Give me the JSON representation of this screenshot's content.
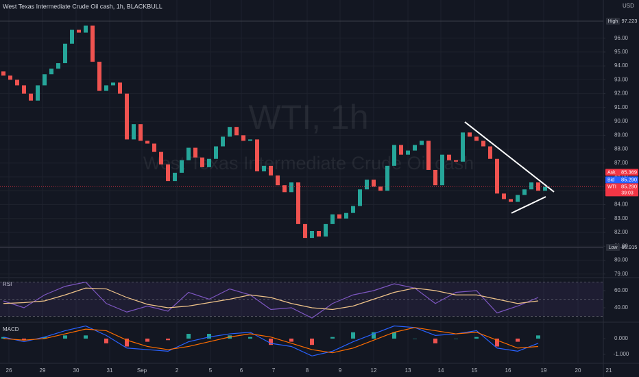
{
  "header": {
    "title": "West Texas Intermediate Crude Oil cash, 1h, BLACKBULL",
    "currency": "USD",
    "watermark": "WTI, 1h",
    "watermark_sub": "West Texas Intermediate Crude Oil cash"
  },
  "chart_data": [
    {
      "type": "candlestick",
      "open": [
        93.6,
        93.3,
        93.0,
        92.6,
        92.0,
        91.5,
        92.6,
        93.4,
        93.8,
        94.2,
        95.6,
        96.6,
        96.4,
        96.9,
        94.3,
        92.2,
        92.6,
        92.8,
        92.0,
        88.7,
        89.8,
        88.6,
        88.4,
        87.8,
        86.9,
        85.7,
        86.3,
        87.2,
        88.1,
        87.4,
        86.7,
        87.3,
        88.2,
        88.9,
        89.6,
        89.0,
        88.6,
        88.7,
        86.4,
        86.8,
        86.1,
        85.4,
        84.9,
        85.6,
        82.6,
        81.6,
        82.1,
        81.7,
        82.6,
        83.3,
        83.0,
        83.4,
        83.9,
        85.1,
        85.8,
        85.3,
        85.0,
        86.8,
        88.3,
        87.6,
        87.9,
        88.3,
        88.6,
        86.5,
        85.4,
        87.6,
        87.2,
        87.1,
        89.2,
        88.9,
        88.6,
        88.2,
        87.3,
        84.8,
        84.4,
        84.2,
        84.7,
        85.1,
        85.6,
        85.0
      ],
      "high": {
        "label": "High",
        "value": 97.223
      },
      "low": {
        "label": "Low",
        "value": 80.915
      },
      "close": [
        93.3,
        93.0,
        92.6,
        92.0,
        91.5,
        92.6,
        93.4,
        93.8,
        94.2,
        95.6,
        96.6,
        96.4,
        96.9,
        94.3,
        92.2,
        92.6,
        92.8,
        92.0,
        88.7,
        89.8,
        88.6,
        88.4,
        87.8,
        86.9,
        85.7,
        86.3,
        87.2,
        88.1,
        87.4,
        86.7,
        87.3,
        88.2,
        88.9,
        89.6,
        89.0,
        88.6,
        88.7,
        86.4,
        86.8,
        86.1,
        85.4,
        84.9,
        85.6,
        82.6,
        81.6,
        82.1,
        81.7,
        82.6,
        83.3,
        83.0,
        83.4,
        83.9,
        85.1,
        85.8,
        85.3,
        85.0,
        86.8,
        88.3,
        87.6,
        87.9,
        88.3,
        88.6,
        86.5,
        85.4,
        87.6,
        87.2,
        87.1,
        89.2,
        88.9,
        88.6,
        88.2,
        87.3,
        84.8,
        84.4,
        84.2,
        84.7,
        85.1,
        85.6,
        85.0,
        85.29
      ],
      "up_color": "#26a69a",
      "down_color": "#ef5350",
      "xlim": [
        -0.5,
        87.5
      ],
      "xticks": [
        {
          "value": 0.8,
          "label": "26"
        },
        {
          "value": 5.7,
          "label": "29"
        },
        {
          "value": 10.6,
          "label": "30"
        },
        {
          "value": 15.5,
          "label": "31"
        },
        {
          "value": 20.2,
          "label": "Sep"
        },
        {
          "value": 25.3,
          "label": "2"
        },
        {
          "value": 30.2,
          "label": "5"
        },
        {
          "value": 34.7,
          "label": "6"
        },
        {
          "value": 39.4,
          "label": "7"
        },
        {
          "value": 44.3,
          "label": "8"
        },
        {
          "value": 49.1,
          "label": "9"
        },
        {
          "value": 54.0,
          "label": "12"
        },
        {
          "value": 59.0,
          "label": "13"
        },
        {
          "value": 63.8,
          "label": "14"
        },
        {
          "value": 68.7,
          "label": "15"
        },
        {
          "value": 73.6,
          "label": "16"
        },
        {
          "value": 78.8,
          "label": "19"
        },
        {
          "value": 83.8,
          "label": "20"
        },
        {
          "value": 88.3,
          "label": "21"
        }
      ],
      "ylim": [
        78.74,
        98.75
      ],
      "yticks": [
        {
          "value": 79,
          "label": "79.00"
        },
        {
          "value": 80,
          "label": "80.00"
        },
        {
          "value": 81,
          "label": "81.00"
        },
        {
          "value": 82,
          "label": "82.00"
        },
        {
          "value": 83,
          "label": "83.00"
        },
        {
          "value": 84,
          "label": "84.00"
        },
        {
          "value": 85,
          "label": "85.00"
        },
        {
          "value": 86,
          "label": "86.00"
        },
        {
          "value": 87,
          "label": "87.00"
        },
        {
          "value": 88,
          "label": "88.00"
        },
        {
          "value": 89,
          "label": "89.00"
        },
        {
          "value": 90,
          "label": "90.00"
        },
        {
          "value": 91,
          "label": "91.00"
        },
        {
          "value": 92,
          "label": "92.00"
        },
        {
          "value": 93,
          "label": "93.00"
        },
        {
          "value": 94,
          "label": "94.00"
        },
        {
          "value": 95,
          "label": "95.00"
        },
        {
          "value": 96,
          "label": "96.00"
        }
      ],
      "grid": true,
      "quotes": [
        {
          "name": "Ask",
          "value": 85.369,
          "color": "#f23645"
        },
        {
          "name": "Bid",
          "value": 85.29,
          "value_label": "85.290",
          "color": "#2962ff"
        },
        {
          "name": "WTI",
          "value": 85.29,
          "value_label": "85.290",
          "color": "#f23645",
          "countdown": "39:03"
        }
      ],
      "trendlines": [
        {
          "from": [
            67.3,
            89.96
          ],
          "to": [
            80.3,
            84.92
          ],
          "color": "#ffffff"
        },
        {
          "from": [
            74.1,
            83.39
          ],
          "to": [
            79.1,
            84.57
          ],
          "color": "#ffffff"
        }
      ]
    },
    {
      "type": "line",
      "title": "RSI",
      "x": [
        0,
        3,
        6,
        9,
        12,
        15,
        18,
        21,
        24,
        27,
        30,
        33,
        36,
        39,
        42,
        45,
        48,
        51,
        54,
        57,
        60,
        63,
        66,
        69,
        72,
        75,
        78
      ],
      "series": [
        {
          "color": "#7e57c2",
          "values": [
            48,
            40,
            55,
            65,
            70,
            45,
            35,
            42,
            36,
            58,
            50,
            62,
            55,
            38,
            40,
            28,
            45,
            55,
            60,
            68,
            63,
            45,
            58,
            60,
            34,
            42,
            52
          ]
        },
        {
          "color": "#f0c48a",
          "values": [
            45,
            46,
            48,
            55,
            63,
            62,
            52,
            44,
            40,
            42,
            46,
            50,
            55,
            52,
            45,
            40,
            38,
            42,
            50,
            58,
            63,
            60,
            55,
            55,
            50,
            45,
            48
          ]
        }
      ],
      "levels": [
        70,
        50,
        30
      ],
      "ylim": [
        23.2,
        75.2
      ],
      "yticks": [
        {
          "value": 40,
          "label": "40.00"
        },
        {
          "value": 60,
          "label": "60.00"
        }
      ]
    },
    {
      "type": "macd",
      "title": "MACD",
      "x": [
        0,
        3,
        6,
        9,
        12,
        15,
        18,
        21,
        24,
        27,
        30,
        33,
        36,
        39,
        42,
        45,
        48,
        51,
        54,
        57,
        60,
        63,
        66,
        69,
        72,
        75,
        78
      ],
      "series": [
        {
          "color": "#2962ff",
          "values": [
            0.1,
            -0.2,
            0.1,
            0.5,
            0.8,
            0.2,
            -0.6,
            -0.7,
            -0.8,
            -0.2,
            0.1,
            0.3,
            0.4,
            -0.3,
            -0.5,
            -1.1,
            -0.8,
            -0.2,
            0.3,
            0.8,
            0.7,
            0.2,
            0.3,
            0.5,
            -0.6,
            -0.8,
            -0.3
          ]
        },
        {
          "color": "#ff6d00",
          "values": [
            0.0,
            -0.1,
            0.0,
            0.3,
            0.6,
            0.5,
            -0.1,
            -0.5,
            -0.7,
            -0.5,
            -0.2,
            0.1,
            0.3,
            0.1,
            -0.3,
            -0.7,
            -0.9,
            -0.6,
            -0.1,
            0.4,
            0.7,
            0.5,
            0.3,
            0.4,
            -0.1,
            -0.6,
            -0.5
          ]
        }
      ],
      "histogram": {
        "up_color": "#26a69a",
        "down_color": "#ef5350",
        "values": [
          0.1,
          -0.1,
          0.1,
          0.2,
          0.2,
          -0.3,
          -0.5,
          -0.2,
          -0.1,
          0.3,
          0.3,
          0.2,
          0.1,
          -0.4,
          -0.2,
          -0.4,
          0.1,
          0.4,
          0.4,
          0.4,
          0.0,
          -0.3,
          0.0,
          0.1,
          -0.5,
          -0.2,
          0.2
        ]
      },
      "ylim": [
        -1.565,
        1.04
      ],
      "yticks": [
        {
          "value": 0,
          "label": "0.000"
        },
        {
          "value": -1,
          "label": "-1.000"
        }
      ]
    }
  ]
}
